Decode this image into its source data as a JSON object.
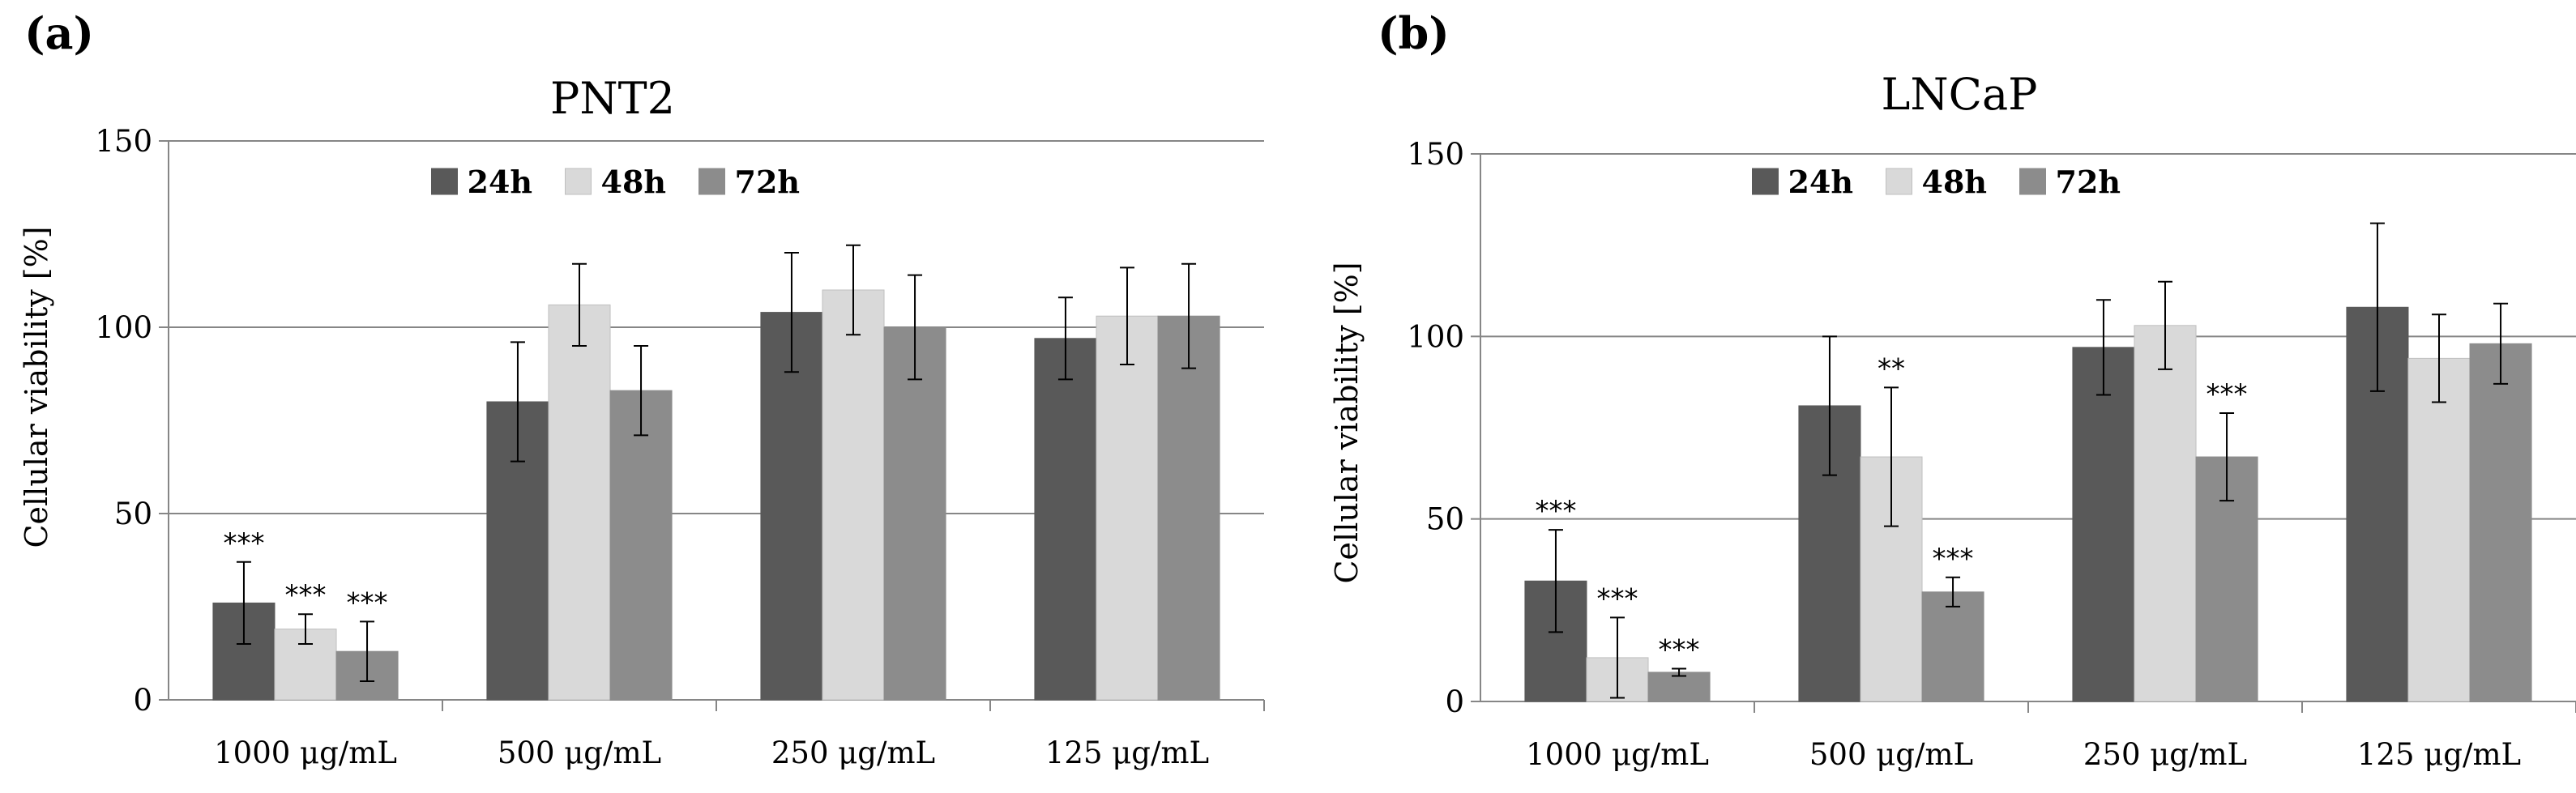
{
  "figure": {
    "panels": [
      "(a)",
      "(b)"
    ]
  },
  "chart_data": [
    {
      "type": "bar",
      "panel_label": "(a)",
      "title": "PNT2",
      "xlabel": "",
      "ylabel": "Cellular viability [%]",
      "ylim": [
        0,
        150
      ],
      "yticks": [
        0,
        50,
        100,
        150
      ],
      "ytick_labels": [
        "0",
        "50",
        "100",
        "150"
      ],
      "grid": true,
      "legend_position": "top",
      "categories": [
        "1000 μg/mL",
        "500 μg/mL",
        "250 μg/mL",
        "125 μg/mL"
      ],
      "series": [
        {
          "name": "24h",
          "color": "#595959",
          "values": [
            26,
            80,
            104,
            97
          ],
          "errors": [
            11,
            16,
            16,
            11
          ],
          "significance": [
            "***",
            "",
            "",
            ""
          ]
        },
        {
          "name": "48h",
          "color": "#d9d9d9",
          "values": [
            19,
            106,
            110,
            103
          ],
          "errors": [
            4,
            11,
            12,
            13
          ],
          "significance": [
            "***",
            "",
            "",
            ""
          ]
        },
        {
          "name": "72h",
          "color": "#8c8c8c",
          "values": [
            13,
            83,
            100,
            103
          ],
          "errors": [
            8,
            12,
            14,
            14
          ],
          "significance": [
            "***",
            "",
            "",
            ""
          ]
        }
      ]
    },
    {
      "type": "bar",
      "panel_label": "(b)",
      "title": "LNCaP",
      "xlabel": "",
      "ylabel": "Cellular viability [%]",
      "ylim": [
        0,
        150
      ],
      "yticks": [
        0,
        50,
        100,
        150
      ],
      "ytick_labels": [
        "0",
        "50",
        "100",
        "150"
      ],
      "grid": true,
      "legend_position": "top",
      "categories": [
        "1000 μg/mL",
        "500 μg/mL",
        "250 μg/mL",
        "125 μg/mL"
      ],
      "series": [
        {
          "name": "24h",
          "color": "#595959",
          "values": [
            33,
            81,
            97,
            108
          ],
          "errors": [
            14,
            19,
            13,
            23
          ],
          "significance": [
            "***",
            "",
            "",
            ""
          ]
        },
        {
          "name": "48h",
          "color": "#d9d9d9",
          "values": [
            12,
            67,
            103,
            94
          ],
          "errors": [
            11,
            19,
            12,
            12
          ],
          "significance": [
            "***",
            "**",
            "",
            ""
          ]
        },
        {
          "name": "72h",
          "color": "#8c8c8c",
          "values": [
            8,
            30,
            67,
            98
          ],
          "errors": [
            1,
            4,
            12,
            11
          ],
          "significance": [
            "***",
            "***",
            "***",
            ""
          ]
        }
      ]
    }
  ]
}
